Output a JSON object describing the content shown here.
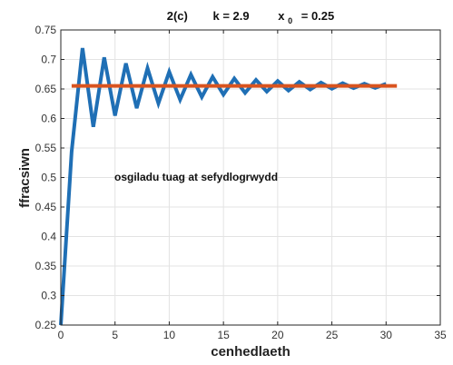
{
  "chart_data": {
    "type": "line",
    "title_parts": {
      "label": "2(c)",
      "k_label": "k  =  2.9",
      "x0_symbol": "x",
      "x0_sub": "0",
      "x0_value": "=  0.25"
    },
    "xlabel": "cenhedlaeth",
    "ylabel": "ffracsiwn",
    "xlim": [
      0,
      35
    ],
    "ylim": [
      0.25,
      0.75
    ],
    "xticks": [
      "0",
      "5",
      "10",
      "15",
      "20",
      "25",
      "30",
      "35"
    ],
    "yticks": [
      "0.25",
      "0.3",
      "0.35",
      "0.4",
      "0.45",
      "0.5",
      "0.55",
      "0.6",
      "0.65",
      "0.7",
      "0.75"
    ],
    "grid": true,
    "annotation": "osgiladu tuag at sefydlogrwydd",
    "series": [
      {
        "color": "#1f6fb5",
        "x": [
          0,
          1,
          2,
          3,
          4,
          5,
          6,
          7,
          8,
          9,
          10,
          11,
          12,
          13,
          14,
          15,
          16,
          17,
          18,
          19,
          20,
          21,
          22,
          23,
          24,
          25,
          26,
          27,
          28,
          29,
          30
        ],
        "y": [
          0.25,
          0.5438,
          0.7192,
          0.5859,
          0.7036,
          0.6047,
          0.6934,
          0.6175,
          0.6852,
          0.6257,
          0.679,
          0.6319,
          0.6743,
          0.6365,
          0.6706,
          0.6404,
          0.6677,
          0.6434,
          0.6654,
          0.6456,
          0.6636,
          0.6473,
          0.6621,
          0.649,
          0.6608,
          0.6504,
          0.6598,
          0.6514,
          0.659,
          0.6519,
          0.6587
        ]
      },
      {
        "color": "#d9531e",
        "x": [
          1,
          31
        ],
        "y": [
          0.6552,
          0.6552
        ]
      }
    ]
  }
}
